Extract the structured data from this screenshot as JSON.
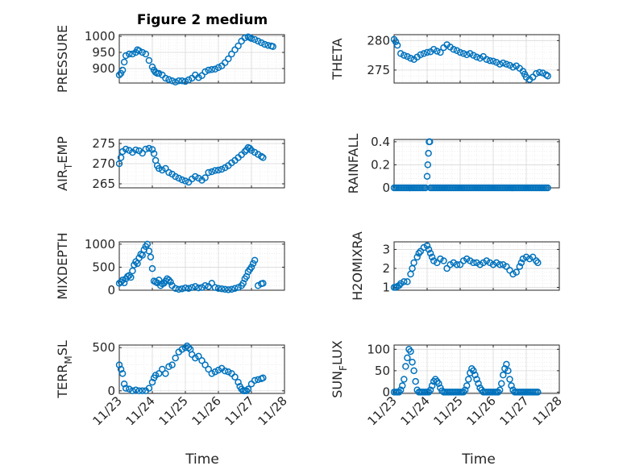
{
  "figure_title": "Figure 2 medium",
  "xlabel": "Time",
  "colors": {
    "marker": "#0072BD",
    "axis": "#262626",
    "grid": "#d9d9d9"
  },
  "chart_data": [
    {
      "type": "scatter",
      "ylabel": "PRESSURE",
      "xlim": [
        0,
        5
      ],
      "ylim": [
        855,
        1005
      ],
      "yticks": [
        900,
        950,
        1000
      ],
      "xticks": [
        0,
        1,
        2,
        3,
        4,
        5
      ],
      "x": [
        0,
        0.05,
        0.1,
        0.15,
        0.2,
        0.3,
        0.4,
        0.5,
        0.55,
        0.6,
        0.7,
        0.8,
        0.9,
        1.0,
        1.05,
        1.1,
        1.15,
        1.2,
        1.3,
        1.4,
        1.5,
        1.6,
        1.7,
        1.8,
        1.9,
        2.0,
        2.1,
        2.2,
        2.3,
        2.4,
        2.5,
        2.6,
        2.7,
        2.8,
        2.9,
        3.0,
        3.1,
        3.2,
        3.3,
        3.4,
        3.5,
        3.6,
        3.7,
        3.8,
        3.9,
        3.95,
        4.0,
        4.1,
        4.2,
        4.3,
        4.4,
        4.5,
        4.6,
        4.65
      ],
      "y": [
        880,
        885,
        895,
        920,
        940,
        945,
        945,
        950,
        958,
        955,
        950,
        945,
        925,
        905,
        895,
        888,
        885,
        885,
        880,
        870,
        866,
        862,
        858,
        862,
        862,
        860,
        865,
        870,
        880,
        872,
        878,
        890,
        895,
        897,
        898,
        903,
        908,
        918,
        930,
        945,
        958,
        970,
        985,
        995,
        998,
        996,
        993,
        990,
        985,
        980,
        975,
        972,
        970,
        968
      ]
    },
    {
      "type": "scatter",
      "ylabel": "THETA",
      "xlim": [
        0,
        5
      ],
      "ylim": [
        272.8,
        281
      ],
      "yticks": [
        275,
        280
      ],
      "xticks": [
        0,
        1,
        2,
        3,
        4,
        5
      ],
      "x": [
        0,
        0.05,
        0.1,
        0.2,
        0.3,
        0.4,
        0.5,
        0.6,
        0.7,
        0.8,
        0.9,
        1.0,
        1.1,
        1.2,
        1.3,
        1.4,
        1.5,
        1.6,
        1.7,
        1.8,
        1.9,
        2.0,
        2.1,
        2.2,
        2.3,
        2.4,
        2.5,
        2.6,
        2.7,
        2.8,
        2.9,
        3.0,
        3.1,
        3.2,
        3.3,
        3.4,
        3.5,
        3.6,
        3.7,
        3.8,
        3.9,
        3.95,
        4.0,
        4.1,
        4.2,
        4.3,
        4.4,
        4.5,
        4.6,
        4.65
      ],
      "y": [
        280.2,
        279.8,
        279.2,
        277.8,
        277.5,
        277.3,
        277.0,
        276.8,
        277.2,
        277.6,
        277.8,
        278.0,
        278.1,
        278.5,
        278.2,
        278.0,
        278.8,
        279.3,
        278.9,
        278.5,
        278.3,
        278.0,
        277.8,
        277.6,
        277.8,
        277.5,
        277.2,
        277.0,
        277.3,
        276.8,
        276.6,
        276.5,
        276.3,
        276.0,
        276.2,
        276.0,
        275.8,
        275.5,
        275.7,
        275.3,
        274.8,
        274.3,
        273.8,
        273.4,
        273.8,
        274.4,
        274.6,
        274.5,
        274.2,
        274.0
      ]
    },
    {
      "type": "scatter",
      "ylabel": "AIR_TEMP",
      "ylabel_main": "AIR",
      "ylabel_sub": "T",
      "ylabel_tail": "EMP",
      "xlim": [
        0,
        5
      ],
      "ylim": [
        264,
        276
      ],
      "yticks": [
        265,
        270,
        275
      ],
      "xticks": [
        0,
        1,
        2,
        3,
        4,
        5
      ],
      "x": [
        0,
        0.05,
        0.1,
        0.2,
        0.3,
        0.4,
        0.5,
        0.6,
        0.7,
        0.8,
        0.9,
        1.0,
        1.05,
        1.1,
        1.15,
        1.2,
        1.3,
        1.4,
        1.5,
        1.6,
        1.7,
        1.8,
        1.9,
        2.0,
        2.1,
        2.2,
        2.3,
        2.4,
        2.5,
        2.6,
        2.7,
        2.8,
        2.9,
        3.0,
        3.1,
        3.2,
        3.3,
        3.4,
        3.5,
        3.6,
        3.7,
        3.8,
        3.85,
        3.9,
        3.95,
        4.0,
        4.1,
        4.2,
        4.3,
        4.35
      ],
      "y": [
        270.0,
        271.5,
        273.0,
        273.6,
        273.3,
        272.8,
        273.4,
        273.2,
        272.6,
        273.6,
        273.8,
        273.5,
        272.5,
        270.8,
        269.5,
        268.8,
        268.4,
        268.8,
        267.8,
        267.4,
        266.8,
        266.4,
        266.0,
        265.7,
        265.4,
        266.2,
        266.8,
        266.4,
        265.9,
        266.5,
        267.8,
        268.0,
        268.3,
        268.4,
        268.6,
        269.0,
        269.5,
        270.2,
        270.8,
        271.5,
        272.2,
        273.0,
        273.4,
        274.0,
        273.8,
        273.3,
        272.8,
        272.3,
        271.8,
        271.5
      ]
    },
    {
      "type": "scatter",
      "ylabel": "RAINFALL",
      "xlim": [
        0,
        5
      ],
      "ylim": [
        0,
        0.42
      ],
      "yticks": [
        0,
        0.2,
        0.4
      ],
      "xticks": [
        0,
        1,
        2,
        3,
        4,
        5
      ],
      "x": [
        0,
        0.05,
        0.1,
        0.15,
        0.2,
        0.25,
        0.3,
        0.35,
        0.4,
        0.45,
        0.5,
        0.55,
        0.6,
        0.65,
        0.7,
        0.75,
        0.8,
        0.85,
        0.9,
        0.95,
        1.0,
        1.02,
        1.04,
        1.06,
        1.08,
        1.1,
        1.15,
        1.2,
        1.25,
        1.3,
        1.35,
        1.4,
        1.45,
        1.5,
        1.55,
        1.6,
        1.65,
        1.7,
        1.75,
        1.8,
        1.85,
        1.9,
        1.95,
        2.0,
        2.05,
        2.1,
        2.15,
        2.2,
        2.25,
        2.3,
        2.35,
        2.4,
        2.45,
        2.5,
        2.55,
        2.6,
        2.65,
        2.7,
        2.75,
        2.8,
        2.85,
        2.9,
        2.95,
        3.0,
        3.05,
        3.1,
        3.15,
        3.2,
        3.25,
        3.3,
        3.35,
        3.4,
        3.45,
        3.5,
        3.55,
        3.6,
        3.65,
        3.7,
        3.75,
        3.8,
        3.85,
        3.9,
        3.95,
        4.0,
        4.05,
        4.1,
        4.15,
        4.2,
        4.25,
        4.3,
        4.35,
        4.4,
        4.45,
        4.5,
        4.55,
        4.6,
        4.65
      ],
      "y": [
        0,
        0,
        0,
        0,
        0,
        0,
        0,
        0,
        0,
        0,
        0,
        0,
        0,
        0,
        0,
        0,
        0,
        0,
        0,
        0,
        0.1,
        0.2,
        0.3,
        0.4,
        0.4,
        0,
        0,
        0,
        0,
        0,
        0,
        0,
        0,
        0,
        0,
        0,
        0,
        0,
        0,
        0,
        0,
        0,
        0,
        0,
        0,
        0,
        0,
        0,
        0,
        0,
        0,
        0,
        0,
        0,
        0,
        0,
        0,
        0,
        0,
        0,
        0,
        0,
        0,
        0,
        0,
        0,
        0,
        0,
        0,
        0,
        0,
        0,
        0,
        0,
        0,
        0,
        0,
        0,
        0,
        0,
        0,
        0,
        0,
        0,
        0,
        0,
        0,
        0,
        0,
        0,
        0,
        0,
        0,
        0,
        0,
        0,
        0
      ]
    },
    {
      "type": "scatter",
      "ylabel": "MIXDEPTH",
      "xlim": [
        0,
        5
      ],
      "ylim": [
        0,
        1050
      ],
      "yticks": [
        0,
        500,
        1000
      ],
      "xticks": [
        0,
        1,
        2,
        3,
        4,
        5
      ],
      "x": [
        0,
        0.05,
        0.1,
        0.15,
        0.2,
        0.25,
        0.3,
        0.35,
        0.4,
        0.45,
        0.5,
        0.55,
        0.6,
        0.65,
        0.7,
        0.75,
        0.8,
        0.85,
        0.9,
        0.95,
        1.0,
        1.05,
        1.1,
        1.15,
        1.2,
        1.25,
        1.3,
        1.35,
        1.4,
        1.45,
        1.5,
        1.55,
        1.6,
        1.7,
        1.8,
        1.9,
        2.0,
        2.1,
        2.2,
        2.3,
        2.4,
        2.5,
        2.6,
        2.7,
        2.8,
        2.9,
        3.0,
        3.1,
        3.2,
        3.3,
        3.4,
        3.5,
        3.6,
        3.7,
        3.75,
        3.8,
        3.85,
        3.9,
        3.95,
        4.0,
        4.05,
        4.1,
        4.2,
        4.3,
        4.35
      ],
      "y": [
        150,
        180,
        220,
        160,
        250,
        300,
        320,
        280,
        420,
        550,
        620,
        580,
        700,
        780,
        760,
        880,
        950,
        1000,
        850,
        720,
        470,
        200,
        180,
        160,
        220,
        100,
        140,
        150,
        200,
        250,
        220,
        180,
        100,
        40,
        20,
        30,
        50,
        40,
        60,
        80,
        50,
        60,
        100,
        80,
        150,
        60,
        40,
        30,
        20,
        10,
        20,
        40,
        60,
        100,
        150,
        250,
        300,
        400,
        450,
        500,
        580,
        650,
        100,
        140,
        150
      ]
    },
    {
      "type": "scatter",
      "ylabel": "H2OMIXRA",
      "xlim": [
        0,
        5
      ],
      "ylim": [
        0.85,
        3.4
      ],
      "yticks": [
        1,
        2,
        3
      ],
      "xticks": [
        0,
        1,
        2,
        3,
        4,
        5
      ],
      "x": [
        0,
        0.05,
        0.1,
        0.15,
        0.2,
        0.3,
        0.4,
        0.5,
        0.55,
        0.6,
        0.7,
        0.75,
        0.8,
        0.9,
        1.0,
        1.05,
        1.1,
        1.15,
        1.2,
        1.3,
        1.4,
        1.5,
        1.6,
        1.7,
        1.8,
        1.9,
        2.0,
        2.1,
        2.2,
        2.3,
        2.4,
        2.5,
        2.6,
        2.7,
        2.8,
        2.9,
        3.0,
        3.1,
        3.2,
        3.3,
        3.4,
        3.5,
        3.6,
        3.7,
        3.8,
        3.85,
        3.9,
        4.0,
        4.1,
        4.2,
        4.3,
        4.35
      ],
      "y": [
        1.0,
        1.0,
        1.05,
        1.1,
        1.2,
        1.3,
        1.3,
        1.7,
        2.0,
        2.3,
        2.6,
        2.8,
        2.9,
        3.1,
        3.2,
        3.0,
        2.8,
        2.6,
        2.4,
        2.3,
        2.5,
        2.4,
        2.0,
        2.2,
        2.3,
        2.2,
        2.2,
        2.4,
        2.5,
        2.4,
        2.3,
        2.3,
        2.2,
        2.3,
        2.4,
        2.3,
        2.2,
        2.3,
        2.2,
        2.2,
        2.1,
        1.9,
        1.7,
        1.8,
        2.1,
        2.3,
        2.5,
        2.6,
        2.5,
        2.6,
        2.4,
        2.3
      ]
    },
    {
      "type": "scatter",
      "ylabel": "TERR_MSL",
      "ylabel_main": "TERR",
      "ylabel_sub": "M",
      "ylabel_tail": "SL",
      "xlim": [
        0,
        5
      ],
      "ylim": [
        -30,
        530
      ],
      "yticks": [
        0,
        500
      ],
      "xticks": [
        0,
        1,
        2,
        3,
        4,
        5
      ],
      "xticklabels": [
        "11/23",
        "11/24",
        "11/25",
        "11/26",
        "11/27",
        "11/28"
      ],
      "x": [
        0,
        0.05,
        0.1,
        0.15,
        0.2,
        0.3,
        0.4,
        0.5,
        0.6,
        0.7,
        0.8,
        0.9,
        1.0,
        1.05,
        1.1,
        1.2,
        1.3,
        1.4,
        1.5,
        1.6,
        1.7,
        1.8,
        1.9,
        2.0,
        2.05,
        2.1,
        2.15,
        2.2,
        2.3,
        2.4,
        2.5,
        2.6,
        2.7,
        2.8,
        2.9,
        3.0,
        3.1,
        3.2,
        3.3,
        3.4,
        3.5,
        3.6,
        3.65,
        3.7,
        3.75,
        3.8,
        3.85,
        3.9,
        4.0,
        4.1,
        4.2,
        4.3,
        4.35
      ],
      "y": [
        300,
        250,
        200,
        80,
        30,
        20,
        0,
        10,
        0,
        0,
        0,
        30,
        100,
        150,
        180,
        200,
        250,
        200,
        280,
        300,
        380,
        450,
        480,
        500,
        520,
        500,
        480,
        420,
        380,
        400,
        350,
        300,
        250,
        200,
        220,
        240,
        260,
        230,
        220,
        200,
        160,
        100,
        50,
        20,
        0,
        0,
        0,
        20,
        80,
        120,
        130,
        140,
        150
      ]
    },
    {
      "type": "scatter",
      "ylabel": "SUN_FLUX",
      "ylabel_main": "SUN",
      "ylabel_sub": "F",
      "ylabel_tail": "LUX",
      "xlim": [
        0,
        5
      ],
      "ylim": [
        -3,
        110
      ],
      "yticks": [
        0,
        50,
        100
      ],
      "xticks": [
        0,
        1,
        2,
        3,
        4,
        5
      ],
      "xticklabels": [
        "11/23",
        "11/24",
        "11/25",
        "11/26",
        "11/27",
        "11/28"
      ],
      "x": [
        0,
        0.05,
        0.1,
        0.15,
        0.2,
        0.25,
        0.3,
        0.35,
        0.4,
        0.45,
        0.5,
        0.55,
        0.6,
        0.65,
        0.7,
        0.75,
        0.8,
        0.85,
        0.9,
        0.95,
        1.0,
        1.05,
        1.1,
        1.15,
        1.2,
        1.25,
        1.3,
        1.35,
        1.4,
        1.45,
        1.5,
        1.55,
        1.6,
        1.65,
        1.7,
        1.75,
        1.8,
        1.85,
        1.9,
        1.95,
        2.0,
        2.05,
        2.1,
        2.15,
        2.2,
        2.25,
        2.3,
        2.35,
        2.4,
        2.45,
        2.5,
        2.55,
        2.6,
        2.65,
        2.7,
        2.75,
        2.8,
        2.85,
        2.9,
        2.95,
        3.0,
        3.05,
        3.1,
        3.15,
        3.2,
        3.25,
        3.3,
        3.35,
        3.4,
        3.45,
        3.5,
        3.55,
        3.6,
        3.65,
        3.7,
        3.75,
        3.8,
        3.85,
        3.9,
        3.95,
        4.0,
        4.05,
        4.1,
        4.15,
        4.2,
        4.25,
        4.3,
        4.35
      ],
      "y": [
        0,
        0,
        0,
        0,
        5,
        15,
        30,
        60,
        80,
        100,
        95,
        70,
        50,
        25,
        5,
        0,
        0,
        0,
        0,
        0,
        0,
        0,
        5,
        15,
        25,
        30,
        25,
        20,
        10,
        3,
        0,
        0,
        0,
        0,
        0,
        0,
        0,
        0,
        0,
        0,
        0,
        0,
        0,
        5,
        15,
        30,
        45,
        55,
        50,
        40,
        30,
        20,
        10,
        5,
        0,
        0,
        0,
        0,
        0,
        0,
        0,
        0,
        0,
        0,
        5,
        20,
        40,
        55,
        65,
        50,
        30,
        15,
        5,
        0,
        0,
        0,
        0,
        0,
        0,
        0,
        0,
        0,
        0,
        0,
        0,
        0,
        0,
        0
      ]
    }
  ]
}
